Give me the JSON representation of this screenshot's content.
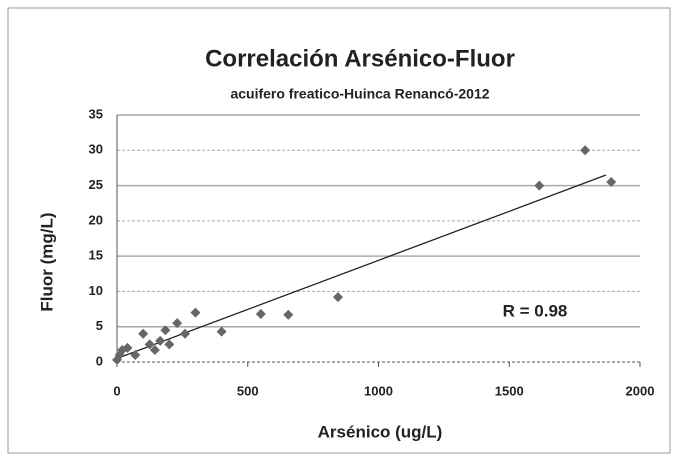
{
  "chart_data": {
    "type": "scatter",
    "title": "Correlación Arsénico-Fluor",
    "subtitle": "acuifero freatico-Huinca Renancó-2012",
    "x_label": "Arsénico (ug/L)",
    "y_label": "Fluor (mg/L)",
    "annotation": "R = 0.98",
    "color": "#666666",
    "series": [
      {
        "name": "Fluor",
        "x": [
          0,
          10,
          20,
          40,
          70,
          100,
          125,
          145,
          165,
          185,
          200,
          230,
          260,
          300,
          400,
          550,
          655,
          845,
          1615,
          1790,
          1890
        ],
        "values": [
          0.3,
          1,
          1.7,
          2,
          1,
          4,
          2.5,
          1.7,
          3,
          4.5,
          2.5,
          5.5,
          4,
          7,
          4.3,
          6.8,
          6.7,
          9.2,
          25,
          30,
          25.5
        ]
      }
    ],
    "trendline": {
      "x": [
        0,
        1870
      ],
      "y": [
        0.5,
        26.5
      ]
    },
    "xlim": [
      0,
      2000
    ],
    "xticks": [
      0,
      500,
      1000,
      1500,
      2000
    ],
    "ylim": [
      0,
      35
    ],
    "yticks": [
      0,
      5,
      10,
      15,
      20,
      25,
      30,
      35
    ],
    "grid": true
  }
}
